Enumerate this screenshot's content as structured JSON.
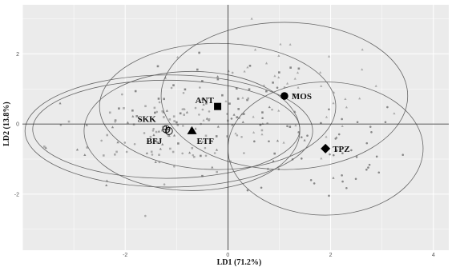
{
  "chart_data": {
    "type": "scatter",
    "title": "",
    "xlabel": "LD1 (71.2%)",
    "ylabel": "LD2 (13.8%)",
    "xlim": [
      -4.0,
      4.3
    ],
    "ylim": [
      -3.6,
      3.4
    ],
    "x_ticks": [
      -2,
      0,
      2,
      4
    ],
    "y_ticks": [
      -2,
      0,
      2
    ],
    "x_tick_labels": [
      "-2",
      "0",
      "2",
      "4"
    ],
    "y_tick_labels": [
      "-2",
      "0",
      "2"
    ],
    "grid": true,
    "background": "#ebebeb",
    "reference_lines": {
      "x": 0,
      "y": 0
    },
    "groups": [
      {
        "name": "ANT",
        "centroid": [
          -0.2,
          0.5
        ],
        "marker": "square",
        "ellipse": {
          "rx": 2.3,
          "ry": 1.8,
          "angle_deg": 0
        }
      },
      {
        "name": "MOS",
        "centroid": [
          1.1,
          0.8
        ],
        "marker": "circle",
        "ellipse": {
          "rx": 2.4,
          "ry": 2.1,
          "angle_deg": 0
        }
      },
      {
        "name": "TPZ",
        "centroid": [
          1.9,
          -0.7
        ],
        "marker": "diamond",
        "ellipse": {
          "rx": 1.9,
          "ry": 1.9,
          "angle_deg": 0
        }
      },
      {
        "name": "SKK",
        "centroid": [
          -1.2,
          -0.15
        ],
        "marker": "open-circle-cross",
        "ellipse": {
          "rx": 2.6,
          "ry": 1.4,
          "angle_deg": 0
        }
      },
      {
        "name": "BFJ",
        "centroid": [
          -1.15,
          -0.2
        ],
        "marker": "open-circle",
        "ellipse": {
          "rx": 2.8,
          "ry": 1.6,
          "angle_deg": 0
        }
      },
      {
        "name": "ETF",
        "centroid": [
          -0.7,
          -0.2
        ],
        "marker": "triangle",
        "ellipse": {
          "rx": 2.1,
          "ry": 1.7,
          "angle_deg": 0
        }
      }
    ],
    "points_note_seed": 12345,
    "colors": {
      "points": "#7a7a7a",
      "ellipse": "#666666",
      "centroid": "#000000"
    }
  }
}
